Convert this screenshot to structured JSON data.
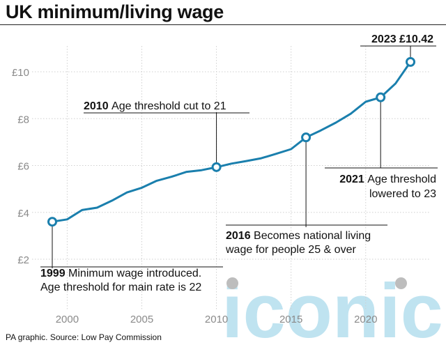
{
  "title": "UK minimum/living wage",
  "source": "PA graphic. Source: Low Pay Commission",
  "watermark": "iconic",
  "colors": {
    "line": "#1a7fad",
    "marker_fill": "#ffffff",
    "annotation_line": "#111111"
  },
  "chart_data": {
    "type": "line",
    "title": "UK minimum/living wage",
    "xlabel": "",
    "ylabel": "",
    "xlim": [
      1998.5,
      2024
    ],
    "ylim": [
      2,
      11.5
    ],
    "x_ticks": [
      2000,
      2005,
      2010,
      2015,
      2020
    ],
    "y_ticks": [
      2,
      4,
      6,
      8,
      10
    ],
    "y_tick_labels": [
      "£2",
      "£4",
      "£6",
      "£8",
      "£10"
    ],
    "grid": true,
    "series": [
      {
        "x": [
          1999,
          2000,
          2001,
          2002,
          2003,
          2004,
          2005,
          2006,
          2007,
          2008,
          2009,
          2010,
          2011,
          2012,
          2013,
          2014,
          2015,
          2016,
          2017,
          2018,
          2019,
          2020,
          2021,
          2022,
          2023
        ],
        "values": [
          3.6,
          3.7,
          4.1,
          4.2,
          4.5,
          4.85,
          5.05,
          5.35,
          5.52,
          5.73,
          5.8,
          5.93,
          6.08,
          6.19,
          6.31,
          6.5,
          6.7,
          7.2,
          7.5,
          7.83,
          8.21,
          8.72,
          8.91,
          9.5,
          10.42
        ]
      }
    ],
    "annotations": [
      {
        "x": 1999,
        "y": 3.6,
        "year": "1999",
        "lines": [
          "Minimum wage introduced.",
          "Age threshold for main rate is 22"
        ]
      },
      {
        "x": 2010,
        "y": 5.93,
        "year": "2010",
        "lines": [
          "Age threshold cut to 21"
        ]
      },
      {
        "x": 2016,
        "y": 7.2,
        "year": "2016",
        "lines": [
          "Becomes national living",
          "wage for people 25 & over"
        ]
      },
      {
        "x": 2021,
        "y": 8.91,
        "year": "2021",
        "lines": [
          "Age threshold",
          "lowered to 23"
        ]
      },
      {
        "x": 2023,
        "y": 10.42,
        "year": "",
        "lines": [
          "2023 £10.42"
        ]
      }
    ]
  }
}
